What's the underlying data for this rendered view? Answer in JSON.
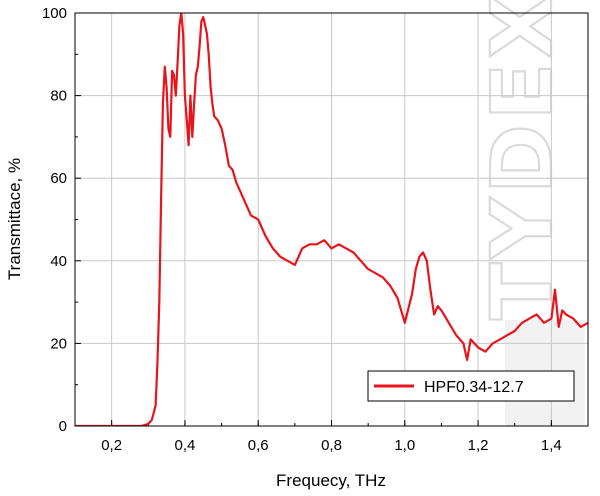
{
  "chart_data": {
    "type": "line",
    "title": "",
    "xlabel": "Frequecy, THz",
    "ylabel": "Transmittace, %",
    "xlim": [
      0.1,
      1.5
    ],
    "ylim": [
      0,
      100
    ],
    "x_ticks": [
      0.2,
      0.4,
      0.6,
      0.8,
      1.0,
      1.2,
      1.4
    ],
    "x_tick_labels": [
      "0,2",
      "0,4",
      "0,6",
      "0,8",
      "1,0",
      "1,2",
      "1,4"
    ],
    "y_ticks": [
      0,
      20,
      40,
      60,
      80,
      100
    ],
    "y_tick_labels": [
      "0",
      "20",
      "40",
      "60",
      "80",
      "100"
    ],
    "grid": true,
    "legend_position": "bottom-right",
    "series": [
      {
        "name": "HPF0.34-12.7",
        "color": "#e8141b",
        "x": [
          0.1,
          0.2,
          0.28,
          0.3,
          0.31,
          0.32,
          0.325,
          0.33,
          0.335,
          0.34,
          0.345,
          0.35,
          0.355,
          0.36,
          0.365,
          0.37,
          0.375,
          0.38,
          0.385,
          0.39,
          0.395,
          0.4,
          0.405,
          0.41,
          0.415,
          0.42,
          0.425,
          0.43,
          0.435,
          0.44,
          0.445,
          0.45,
          0.455,
          0.46,
          0.465,
          0.47,
          0.475,
          0.48,
          0.49,
          0.5,
          0.51,
          0.52,
          0.53,
          0.54,
          0.55,
          0.56,
          0.58,
          0.6,
          0.62,
          0.64,
          0.66,
          0.68,
          0.7,
          0.72,
          0.74,
          0.76,
          0.78,
          0.8,
          0.82,
          0.84,
          0.86,
          0.88,
          0.9,
          0.92,
          0.94,
          0.96,
          0.98,
          1.0,
          1.02,
          1.03,
          1.04,
          1.05,
          1.06,
          1.07,
          1.08,
          1.09,
          1.1,
          1.12,
          1.14,
          1.16,
          1.17,
          1.18,
          1.2,
          1.22,
          1.24,
          1.26,
          1.28,
          1.3,
          1.32,
          1.34,
          1.36,
          1.38,
          1.4,
          1.41,
          1.42,
          1.43,
          1.44,
          1.46,
          1.48,
          1.5
        ],
        "y": [
          0,
          0,
          0,
          0.5,
          1.5,
          5,
          15,
          30,
          55,
          78,
          87,
          82,
          72,
          70,
          86,
          85,
          80,
          88,
          97,
          100,
          95,
          80,
          74,
          68,
          80,
          70,
          78,
          85,
          87,
          92,
          98,
          99,
          97,
          95,
          90,
          82,
          78,
          75,
          74,
          72,
          68,
          63,
          62,
          59,
          57,
          55,
          51,
          50,
          46,
          43,
          41,
          40,
          39,
          43,
          44,
          44,
          45,
          43,
          44,
          43,
          42,
          40,
          38,
          37,
          36,
          34,
          31,
          25,
          32,
          38,
          41,
          42,
          40,
          33,
          27,
          29,
          28,
          25,
          22,
          20,
          16,
          21,
          19,
          18,
          20,
          21,
          22,
          23,
          25,
          26,
          27,
          25,
          26,
          33,
          24,
          28,
          27,
          26,
          24,
          25
        ]
      }
    ],
    "watermark": "TYDEX"
  }
}
